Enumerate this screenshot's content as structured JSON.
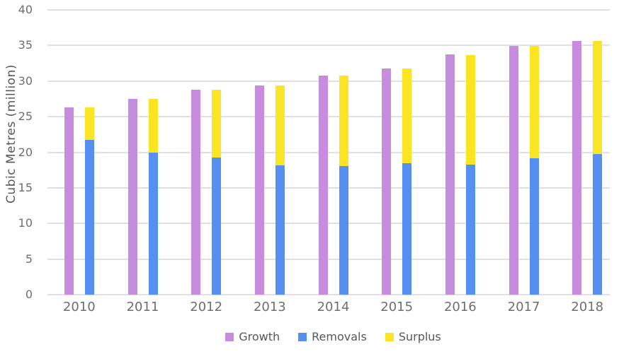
{
  "chart_data": {
    "type": "bar",
    "variant": "grouped: solid Growth bar beside stacked Removals+Surplus bar per year",
    "title": "",
    "xlabel": "",
    "ylabel": "Cubic Metres (million)",
    "ylim": [
      0,
      40
    ],
    "ytick_step": 5,
    "yticks": [
      0,
      5,
      10,
      15,
      20,
      25,
      30,
      35,
      40
    ],
    "grid": true,
    "legend_position": "bottom",
    "categories": [
      "2010",
      "2011",
      "2012",
      "2013",
      "2014",
      "2015",
      "2016",
      "2017",
      "2018"
    ],
    "series": [
      {
        "name": "Growth",
        "color": "#c88cde",
        "role": "standalone",
        "values": [
          26.3,
          27.5,
          28.8,
          29.4,
          30.8,
          31.8,
          33.7,
          34.9,
          35.6
        ]
      },
      {
        "name": "Removals",
        "color": "#5590f0",
        "role": "stack-bottom",
        "values": [
          21.7,
          20.0,
          19.3,
          18.2,
          18.1,
          18.5,
          18.3,
          19.2,
          19.8
        ]
      },
      {
        "name": "Surplus",
        "color": "#fae423",
        "role": "stack-top",
        "values": [
          4.6,
          7.5,
          9.5,
          11.2,
          12.7,
          13.3,
          15.4,
          15.7,
          15.8
        ]
      }
    ]
  },
  "colors": {
    "background": "#ffffff",
    "gridline": "#e0e0e0",
    "tick_text": "#6e6e6e",
    "axis_title_text": "#55575c",
    "legend_text": "#55575c"
  }
}
